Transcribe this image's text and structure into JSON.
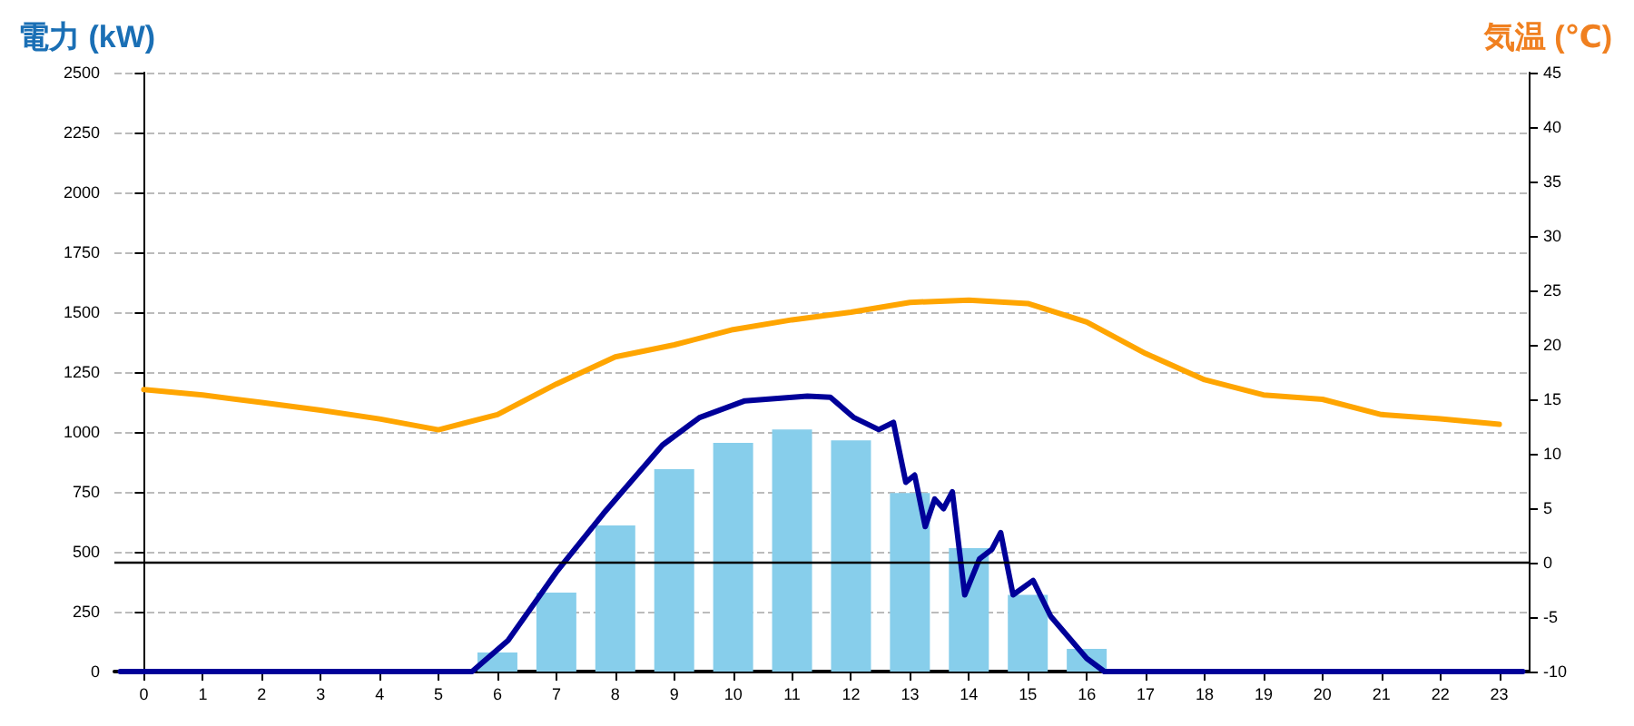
{
  "chart_data": {
    "type": "bar",
    "ylabel": "電力 (kW)",
    "y2label": "気温 (℃)",
    "x": [
      0,
      1,
      2,
      3,
      4,
      5,
      6,
      7,
      8,
      9,
      10,
      11,
      12,
      13,
      14,
      15,
      16,
      17,
      18,
      19,
      20,
      21,
      22,
      23
    ],
    "xlim": [
      -0.5,
      23.5
    ],
    "xticks": [
      0,
      1,
      2,
      3,
      4,
      5,
      6,
      7,
      8,
      9,
      10,
      11,
      12,
      13,
      14,
      15,
      16,
      17,
      18,
      19,
      20,
      21,
      22,
      23
    ],
    "ylim": [
      0,
      2500
    ],
    "yticks": [
      0,
      250,
      500,
      750,
      1000,
      1250,
      1500,
      1750,
      2000,
      2250,
      2500
    ],
    "y2lim": [
      -10,
      45
    ],
    "y2ticks": [
      -10,
      -5,
      0,
      5,
      10,
      15,
      20,
      25,
      30,
      35,
      40,
      45
    ],
    "grid": "y",
    "marker": "none",
    "line_style": "solid",
    "series": [
      {
        "color": "#87ceeb",
        "values": [
          0,
          0,
          0,
          0,
          0,
          0,
          80,
          330,
          610,
          845,
          955,
          1010,
          965,
          745,
          515,
          320,
          95,
          0,
          0,
          0,
          0,
          0,
          0,
          0
        ]
      },
      {
        "type": "line",
        "color": "#000099",
        "x": [
          -0.4,
          5.57,
          6.18,
          7.0,
          7.8,
          8.8,
          9.43,
          10.2,
          11.26,
          11.65,
          12.05,
          12.47,
          12.72,
          12.93,
          13.08,
          13.26,
          13.42,
          13.57,
          13.72,
          13.93,
          14.18,
          14.39,
          14.54,
          14.75,
          15.09,
          15.39,
          16.0,
          16.3,
          23.4
        ],
        "values": [
          0,
          0,
          130,
          415,
          660,
          945,
          1060,
          1130,
          1150,
          1145,
          1060,
          1010,
          1040,
          790,
          820,
          605,
          720,
          680,
          750,
          320,
          470,
          510,
          580,
          320,
          380,
          230,
          55,
          0,
          0
        ]
      },
      {
        "type": "line",
        "color": "#ffa500",
        "axis": "y2",
        "values": [
          15.9,
          15.4,
          14.7,
          14.0,
          13.2,
          12.2,
          13.6,
          16.4,
          18.9,
          20.0,
          21.4,
          22.3,
          23.0,
          23.9,
          24.1,
          23.8,
          22.1,
          19.2,
          16.8,
          15.4,
          15.0,
          13.6,
          13.2,
          12.7
        ]
      }
    ],
    "ref_lines": [
      {
        "axis": "y2",
        "value": 0,
        "color": "#000000",
        "line_style": "solid"
      }
    ]
  }
}
